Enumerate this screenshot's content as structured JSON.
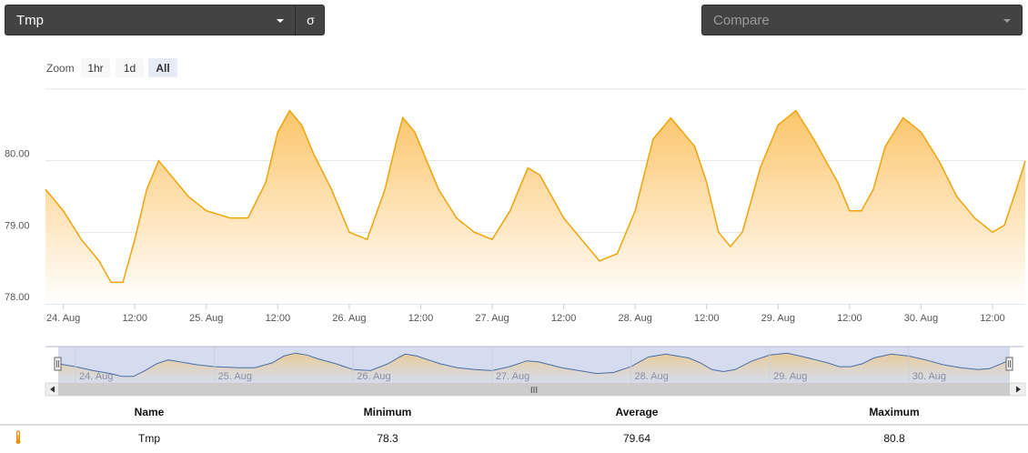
{
  "sensor_select": {
    "value": "Tmp",
    "sigma_label": "σ"
  },
  "compare_select": {
    "placeholder": "Compare"
  },
  "zoom": {
    "label": "Zoom",
    "buttons": [
      "1hr",
      "1d",
      "All"
    ],
    "active": "All"
  },
  "chart_data": {
    "type": "area",
    "series": [
      {
        "name": "Tmp",
        "x": [
          "2014-08-23T21:00",
          "2014-08-24T00:00",
          "2014-08-24T03:00",
          "2014-08-24T06:00",
          "2014-08-24T08:00",
          "2014-08-24T10:00",
          "2014-08-24T12:00",
          "2014-08-24T14:00",
          "2014-08-24T16:00",
          "2014-08-24T18:00",
          "2014-08-24T21:00",
          "2014-08-25T00:00",
          "2014-08-25T04:00",
          "2014-08-25T07:00",
          "2014-08-25T10:00",
          "2014-08-25T12:00",
          "2014-08-25T14:00",
          "2014-08-25T16:00",
          "2014-08-25T18:00",
          "2014-08-25T21:00",
          "2014-08-26T00:00",
          "2014-08-26T03:00",
          "2014-08-26T06:00",
          "2014-08-26T08:00",
          "2014-08-26T09:00",
          "2014-08-26T11:00",
          "2014-08-26T13:00",
          "2014-08-26T15:00",
          "2014-08-26T18:00",
          "2014-08-26T21:00",
          "2014-08-27T00:00",
          "2014-08-27T03:00",
          "2014-08-27T06:00",
          "2014-08-27T08:00",
          "2014-08-27T10:00",
          "2014-08-27T12:00",
          "2014-08-27T15:00",
          "2014-08-27T18:00",
          "2014-08-27T21:00",
          "2014-08-28T00:00",
          "2014-08-28T03:00",
          "2014-08-28T06:00",
          "2014-08-28T08:00",
          "2014-08-28T10:00",
          "2014-08-28T12:00",
          "2014-08-28T14:00",
          "2014-08-28T16:00",
          "2014-08-28T18:00",
          "2014-08-28T21:00",
          "2014-08-29T00:00",
          "2014-08-29T03:00",
          "2014-08-29T06:00",
          "2014-08-29T08:00",
          "2014-08-29T10:00",
          "2014-08-29T12:00",
          "2014-08-29T14:00",
          "2014-08-29T16:00",
          "2014-08-29T18:00",
          "2014-08-29T21:00",
          "2014-08-30T00:00",
          "2014-08-30T03:00",
          "2014-08-30T06:00",
          "2014-08-30T09:00",
          "2014-08-30T12:00",
          "2014-08-30T14:00",
          "2014-08-30T16:00",
          "2014-08-30T17:30"
        ],
        "y": [
          79.6,
          79.3,
          78.9,
          78.6,
          78.3,
          78.3,
          78.9,
          79.6,
          80.0,
          79.8,
          79.5,
          79.3,
          79.2,
          79.2,
          79.7,
          80.4,
          80.7,
          80.5,
          80.1,
          79.6,
          79.0,
          78.9,
          79.6,
          80.3,
          80.6,
          80.4,
          80.0,
          79.6,
          79.2,
          79.0,
          78.9,
          79.3,
          79.9,
          79.8,
          79.5,
          79.2,
          78.9,
          78.6,
          78.7,
          79.3,
          80.3,
          80.6,
          80.4,
          80.2,
          79.7,
          79.0,
          78.8,
          79.0,
          79.9,
          80.5,
          80.7,
          80.3,
          80.0,
          79.7,
          79.3,
          79.3,
          79.6,
          80.2,
          80.6,
          80.4,
          80.0,
          79.5,
          79.2,
          79.0,
          79.1,
          79.6,
          80.0
        ]
      }
    ],
    "x_ticks": [
      "24. Aug",
      "12:00",
      "25. Aug",
      "12:00",
      "26. Aug",
      "12:00",
      "27. Aug",
      "12:00",
      "28. Aug",
      "12:00",
      "29. Aug",
      "12:00",
      "30. Aug",
      "12:00"
    ],
    "y_ticks": [
      "78.00",
      "79.00",
      "80.00"
    ],
    "ylim": [
      78.0,
      81.0
    ],
    "colors": {
      "line": "#f0a30a",
      "fill_top": "#fcc56a",
      "fill_bottom": "#ffffff",
      "navigator_bg": "#d5dcef",
      "navigator_line": "#4a6ea8"
    }
  },
  "navigator": {
    "labels": [
      "24. Aug",
      "25. Aug",
      "26. Aug",
      "27. Aug",
      "28. Aug",
      "29. Aug",
      "30. Aug"
    ],
    "scroll_grip": "III"
  },
  "stats": {
    "headers": {
      "name": "Name",
      "minimum": "Minimum",
      "average": "Average",
      "maximum": "Maximum"
    },
    "rows": [
      {
        "icon": "thermometer-icon",
        "name": "Tmp",
        "minimum": "78.3",
        "average": "79.64",
        "maximum": "80.8"
      }
    ]
  }
}
